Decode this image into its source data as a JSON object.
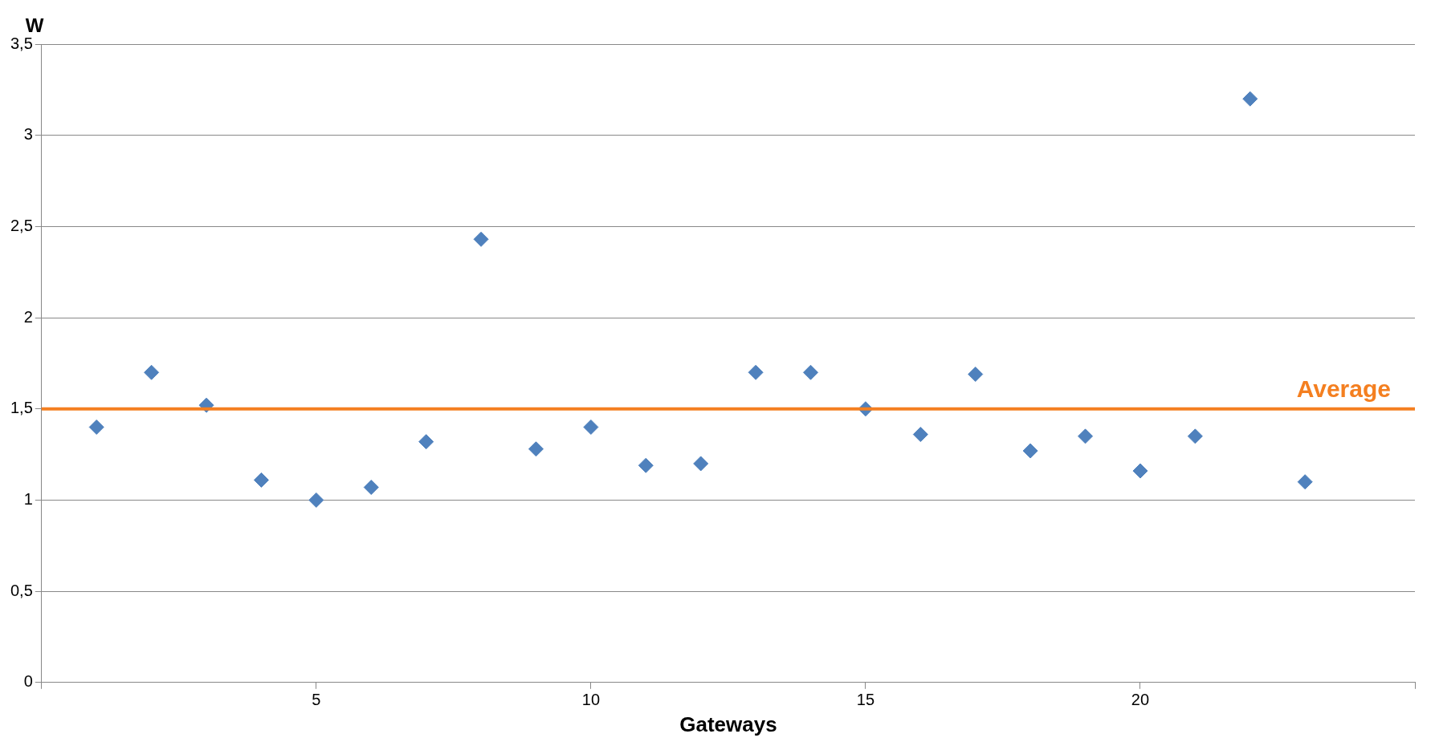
{
  "chart_data": {
    "type": "scatter",
    "xlabel": "Gateways",
    "ylabel": "W",
    "x": [
      1,
      2,
      3,
      4,
      5,
      6,
      7,
      8,
      9,
      10,
      11,
      12,
      13,
      14,
      15,
      16,
      17,
      18,
      19,
      20,
      21,
      22,
      23
    ],
    "series": [
      {
        "color": "#4f81bd",
        "values": [
          1.4,
          1.7,
          1.52,
          1.11,
          1.0,
          1.07,
          1.32,
          2.43,
          1.28,
          1.4,
          1.19,
          1.2,
          1.7,
          1.7,
          1.5,
          1.36,
          1.69,
          1.27,
          1.35,
          1.16,
          1.35,
          3.2,
          1.1
        ]
      }
    ],
    "xlim": [
      0,
      25
    ],
    "xticks": [
      {
        "value": 0,
        "label": null
      },
      5,
      10,
      15,
      20,
      {
        "value": 25,
        "label": null
      }
    ],
    "ylim": [
      0,
      3.5
    ],
    "yticks": [
      0,
      {
        "value": 0.5,
        "label": "0,5"
      },
      1,
      {
        "value": 1.5,
        "label": "1,5"
      },
      2,
      {
        "value": 2.5,
        "label": "2,5"
      },
      3,
      {
        "value": 3.5,
        "label": "3,5"
      }
    ],
    "ref_lines": [
      {
        "axis": "y",
        "value": 1.5,
        "label": "Average",
        "color": "#f47f20"
      }
    ],
    "grid": "y",
    "marker": "diamond",
    "legend": false
  }
}
